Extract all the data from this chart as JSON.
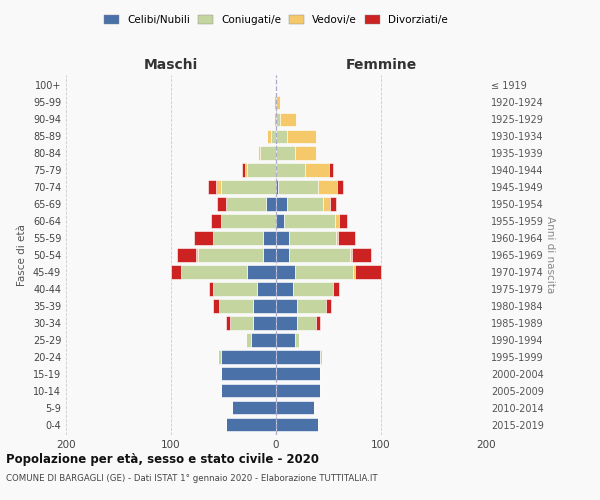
{
  "age_groups_bottom_to_top": [
    "0-4",
    "5-9",
    "10-14",
    "15-19",
    "20-24",
    "25-29",
    "30-34",
    "35-39",
    "40-44",
    "45-49",
    "50-54",
    "55-59",
    "60-64",
    "65-69",
    "70-74",
    "75-79",
    "80-84",
    "85-89",
    "90-94",
    "95-99",
    "100+"
  ],
  "birth_years_bottom_to_top": [
    "2015-2019",
    "2010-2014",
    "2005-2009",
    "2000-2004",
    "1995-1999",
    "1990-1994",
    "1985-1989",
    "1980-1984",
    "1975-1979",
    "1970-1974",
    "1965-1969",
    "1960-1964",
    "1955-1959",
    "1950-1954",
    "1945-1949",
    "1940-1944",
    "1935-1939",
    "1930-1934",
    "1925-1929",
    "1920-1924",
    "≤ 1919"
  ],
  "male": {
    "celibi": [
      48,
      42,
      52,
      52,
      52,
      24,
      22,
      22,
      18,
      28,
      12,
      12,
      0,
      10,
      0,
      0,
      0,
      0,
      0,
      0,
      0
    ],
    "coniugati": [
      0,
      0,
      0,
      0,
      3,
      5,
      22,
      32,
      42,
      62,
      62,
      48,
      52,
      38,
      52,
      28,
      15,
      5,
      0,
      0,
      0
    ],
    "vedovi": [
      0,
      0,
      0,
      0,
      0,
      0,
      0,
      0,
      0,
      0,
      2,
      0,
      0,
      0,
      5,
      2,
      2,
      4,
      2,
      2,
      0
    ],
    "divorziati": [
      0,
      0,
      0,
      0,
      0,
      0,
      4,
      6,
      4,
      10,
      18,
      18,
      10,
      8,
      8,
      2,
      0,
      0,
      0,
      0,
      0
    ]
  },
  "female": {
    "nubili": [
      40,
      36,
      42,
      42,
      42,
      18,
      20,
      20,
      16,
      18,
      12,
      12,
      8,
      10,
      2,
      0,
      0,
      0,
      0,
      0,
      0
    ],
    "coniugate": [
      0,
      0,
      0,
      0,
      2,
      4,
      18,
      28,
      38,
      55,
      58,
      45,
      48,
      35,
      38,
      28,
      18,
      10,
      4,
      0,
      0
    ],
    "vedove": [
      0,
      0,
      0,
      0,
      0,
      0,
      0,
      0,
      0,
      2,
      2,
      2,
      4,
      6,
      18,
      22,
      20,
      28,
      15,
      4,
      0
    ],
    "divorziate": [
      0,
      0,
      0,
      0,
      0,
      0,
      4,
      4,
      6,
      25,
      18,
      16,
      8,
      6,
      6,
      4,
      0,
      0,
      0,
      0,
      0
    ]
  },
  "colors": {
    "celibi": "#4a72a8",
    "coniugati": "#c5d5a0",
    "vedovi": "#f5c96a",
    "divorziati": "#cc2222"
  },
  "xlim": 200,
  "title": "Popolazione per età, sesso e stato civile - 2020",
  "subtitle": "COMUNE DI BARGAGLI (GE) - Dati ISTAT 1° gennaio 2020 - Elaborazione TUTTITALIA.IT",
  "ylabel_left": "Fasce di età",
  "ylabel_right": "Anni di nascita",
  "xlabel_left": "Maschi",
  "xlabel_right": "Femmine",
  "bg_color": "#f9f9f9",
  "grid_color": "#cccccc",
  "spine_color": "#dddddd"
}
